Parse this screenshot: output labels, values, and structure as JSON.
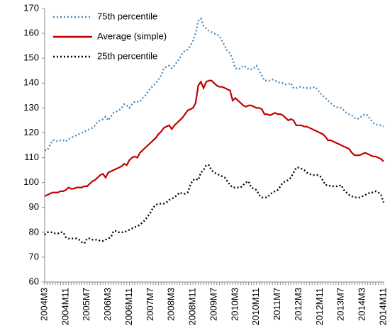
{
  "chart_data": {
    "type": "line",
    "categories": [
      "2004M3",
      null,
      null,
      null,
      null,
      null,
      null,
      null,
      "2004M11",
      null,
      null,
      null,
      null,
      null,
      null,
      null,
      "2005M7",
      null,
      null,
      null,
      null,
      null,
      null,
      null,
      "2006M3",
      null,
      null,
      null,
      null,
      null,
      null,
      null,
      "2006M11",
      null,
      null,
      null,
      null,
      null,
      null,
      null,
      "2007M7",
      null,
      null,
      null,
      null,
      null,
      null,
      null,
      "2008M3",
      null,
      null,
      null,
      null,
      null,
      null,
      null,
      "2008M11",
      null,
      null,
      null,
      null,
      null,
      null,
      null,
      "2009M7",
      null,
      null,
      null,
      null,
      null,
      null,
      null,
      "2010M3",
      null,
      null,
      null,
      null,
      null,
      null,
      null,
      "2010M11",
      null,
      null,
      null,
      null,
      null,
      null,
      null,
      "2011M7",
      null,
      null,
      null,
      null,
      null,
      null,
      null,
      "2012M3",
      null,
      null,
      null,
      null,
      null,
      null,
      null,
      "2012M11",
      null,
      null,
      null,
      null,
      null,
      null,
      null,
      "2013M7",
      null,
      null,
      null,
      null,
      null,
      null,
      null,
      "2014M3",
      null,
      null,
      null,
      null,
      null,
      null,
      null,
      "2014M11"
    ],
    "series": [
      {
        "name": "75th percentile",
        "color": "#4a8cc0",
        "dash": "dotted",
        "values": [
          113,
          113,
          115,
          117,
          117,
          116.5,
          117,
          117,
          116.5,
          117.5,
          118,
          118.5,
          119,
          119.5,
          120,
          120.5,
          121,
          121.5,
          122,
          123,
          124.5,
          125,
          125.5,
          126.5,
          125,
          126.5,
          128,
          128.5,
          129,
          130,
          131.5,
          131,
          130,
          131.5,
          132.5,
          132.5,
          132.5,
          134,
          135,
          136.5,
          138,
          139,
          140,
          141.5,
          143,
          146,
          146.5,
          147,
          146,
          147,
          148.5,
          150,
          152,
          153,
          153.5,
          155,
          157,
          160,
          165,
          166,
          163,
          162,
          161,
          160.5,
          160,
          159.5,
          159,
          157,
          155,
          153,
          152,
          149.5,
          146,
          145.5,
          146,
          147,
          146.5,
          145.5,
          145.5,
          146,
          147,
          145,
          143,
          141,
          141,
          141,
          141.5,
          141,
          140.5,
          140,
          140,
          139.5,
          139.5,
          140,
          138,
          138,
          138.5,
          138.5,
          138,
          138,
          138,
          138,
          138.5,
          137.5,
          136,
          135,
          134,
          133,
          132,
          131,
          130.5,
          130,
          130,
          129,
          128,
          127.5,
          127,
          126,
          125.5,
          126,
          127,
          127.5,
          127,
          125.5,
          124,
          123.5,
          123,
          123,
          122.5
        ]
      },
      {
        "name": "Average (simple)",
        "color": "#c00000",
        "dash": "solid",
        "values": [
          94.5,
          95,
          95.5,
          96,
          96,
          96,
          96.5,
          96.5,
          97,
          98,
          97.5,
          97.5,
          98,
          98,
          98,
          98.5,
          98.5,
          99.5,
          100.5,
          101,
          102,
          103,
          103.5,
          102,
          104,
          104.5,
          105,
          105.5,
          106,
          106.5,
          107.5,
          107,
          109,
          110,
          110.5,
          110,
          112,
          113,
          114,
          115,
          116,
          117,
          118,
          119.5,
          120.5,
          122,
          122.5,
          123,
          121.5,
          123,
          124,
          125,
          126,
          127.5,
          129,
          129.5,
          130,
          132,
          139,
          140.5,
          138,
          140.5,
          141,
          141,
          140,
          139,
          138.5,
          138.5,
          138,
          137.5,
          137,
          133,
          134,
          133,
          132,
          131,
          130.5,
          131,
          131,
          130.5,
          130,
          130,
          129.5,
          127.5,
          127.5,
          127,
          127.5,
          128,
          127.5,
          127.5,
          127,
          126,
          125,
          125.5,
          125,
          123,
          123,
          123,
          122.5,
          122.5,
          122,
          121.5,
          121,
          120.5,
          120,
          119.5,
          118.5,
          117,
          117,
          116.5,
          116,
          115.5,
          115,
          114.5,
          114,
          113.5,
          112,
          111,
          111,
          111,
          111.5,
          112,
          111.5,
          111,
          110.5,
          110.5,
          110,
          109.5,
          108.5
        ]
      },
      {
        "name": "25th percentile",
        "color": "#000000",
        "dash": "dotted",
        "values": [
          79,
          80,
          80,
          80,
          79.5,
          79.5,
          80,
          80,
          78,
          77.5,
          77.5,
          77.5,
          77.5,
          77,
          76,
          75.5,
          77.5,
          77.5,
          77,
          77,
          77,
          76.5,
          76.5,
          77,
          77.5,
          78,
          80.5,
          80.5,
          80,
          80,
          80,
          80.5,
          81,
          81.5,
          82,
          82.5,
          83,
          84,
          85,
          86.5,
          88,
          90,
          91,
          91.5,
          91.5,
          91.5,
          92,
          93,
          93.5,
          94,
          95,
          96,
          95.5,
          95.5,
          96,
          99,
          101,
          101.5,
          101,
          104,
          105,
          107,
          107,
          105,
          104,
          103.5,
          103,
          102.5,
          102,
          100.5,
          99,
          98,
          98,
          98,
          98,
          99,
          100,
          100.5,
          98,
          97.5,
          97,
          95,
          94,
          94,
          94,
          95,
          96,
          96.5,
          97,
          98.5,
          100,
          100.5,
          101,
          102,
          104,
          106,
          106,
          105.5,
          105,
          104,
          103.5,
          103,
          103,
          103,
          102.5,
          101,
          99,
          99,
          98.5,
          98.5,
          98.5,
          98.5,
          99,
          97,
          96,
          95,
          94.5,
          94,
          94,
          94,
          94.5,
          95,
          95.5,
          96,
          96,
          96.5,
          96,
          95,
          92
        ]
      }
    ],
    "ylim": [
      60,
      170
    ],
    "yticks": [
      60,
      70,
      80,
      90,
      100,
      110,
      120,
      130,
      140,
      150,
      160,
      170
    ],
    "grid": false,
    "legend": "top-left"
  }
}
